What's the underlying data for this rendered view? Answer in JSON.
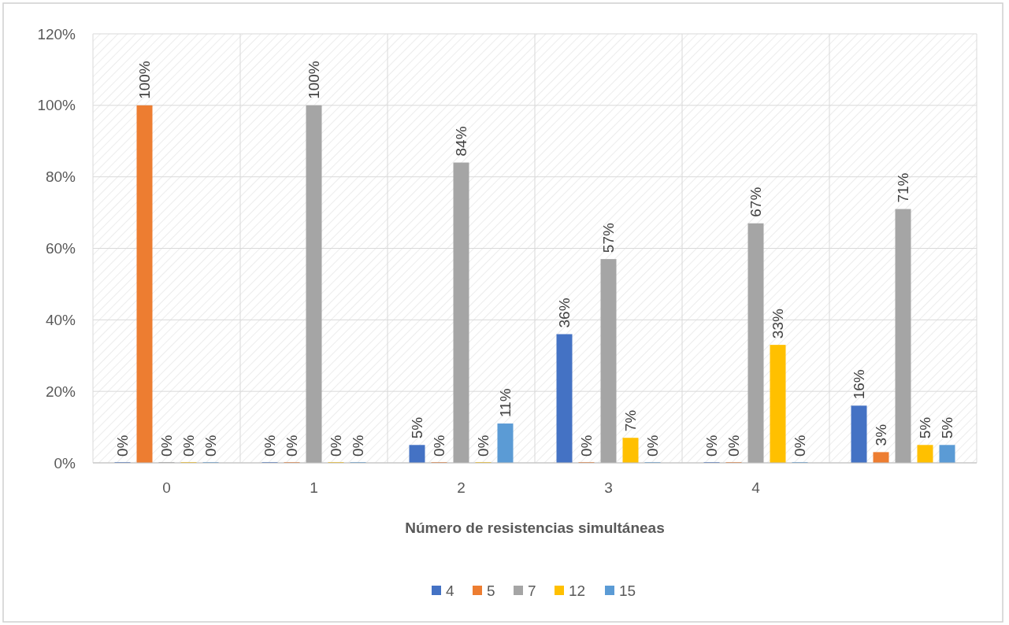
{
  "chart_data": {
    "type": "bar",
    "xlabel": "Número de resistencias simultáneas",
    "categories": [
      "0",
      "1",
      "2",
      "3",
      "4",
      null
    ],
    "series": [
      {
        "name": "4",
        "color": "#4472c4",
        "values": [
          0,
          0,
          5,
          36,
          0,
          16
        ],
        "value_labels": [
          "0%",
          "0%",
          "5%",
          "36%",
          "0%",
          "16%"
        ]
      },
      {
        "name": "5",
        "color": "#ed7d31",
        "values": [
          100,
          0,
          0,
          0,
          0,
          3
        ],
        "value_labels": [
          "100%",
          "0%",
          "0%",
          "0%",
          "0%",
          "3%"
        ]
      },
      {
        "name": "7",
        "color": "#a5a5a5",
        "values": [
          0,
          100,
          84,
          57,
          67,
          71
        ],
        "value_labels": [
          "0%",
          "100%",
          "84%",
          "57%",
          "67%",
          "71%"
        ]
      },
      {
        "name": "12",
        "color": "#ffc000",
        "values": [
          0,
          0,
          0,
          7,
          33,
          5
        ],
        "value_labels": [
          "0%",
          "0%",
          "0%",
          "7%",
          "33%",
          "5%"
        ]
      },
      {
        "name": "15",
        "color": "#5b9bd5",
        "values": [
          0,
          0,
          11,
          0,
          0,
          5
        ],
        "value_labels": [
          "0%",
          "0%",
          "11%",
          "0%",
          "0%",
          "5%"
        ]
      }
    ],
    "ylim": [
      0,
      120
    ],
    "yticks": [
      {
        "value": 0,
        "label": "0%"
      },
      {
        "value": 20,
        "label": "20%"
      },
      {
        "value": 40,
        "label": "40%"
      },
      {
        "value": 60,
        "label": "60%"
      },
      {
        "value": 80,
        "label": "80%"
      },
      {
        "value": 100,
        "label": "100%"
      },
      {
        "value": 120,
        "label": "120%"
      }
    ],
    "grid": true,
    "legend": "bottom"
  }
}
